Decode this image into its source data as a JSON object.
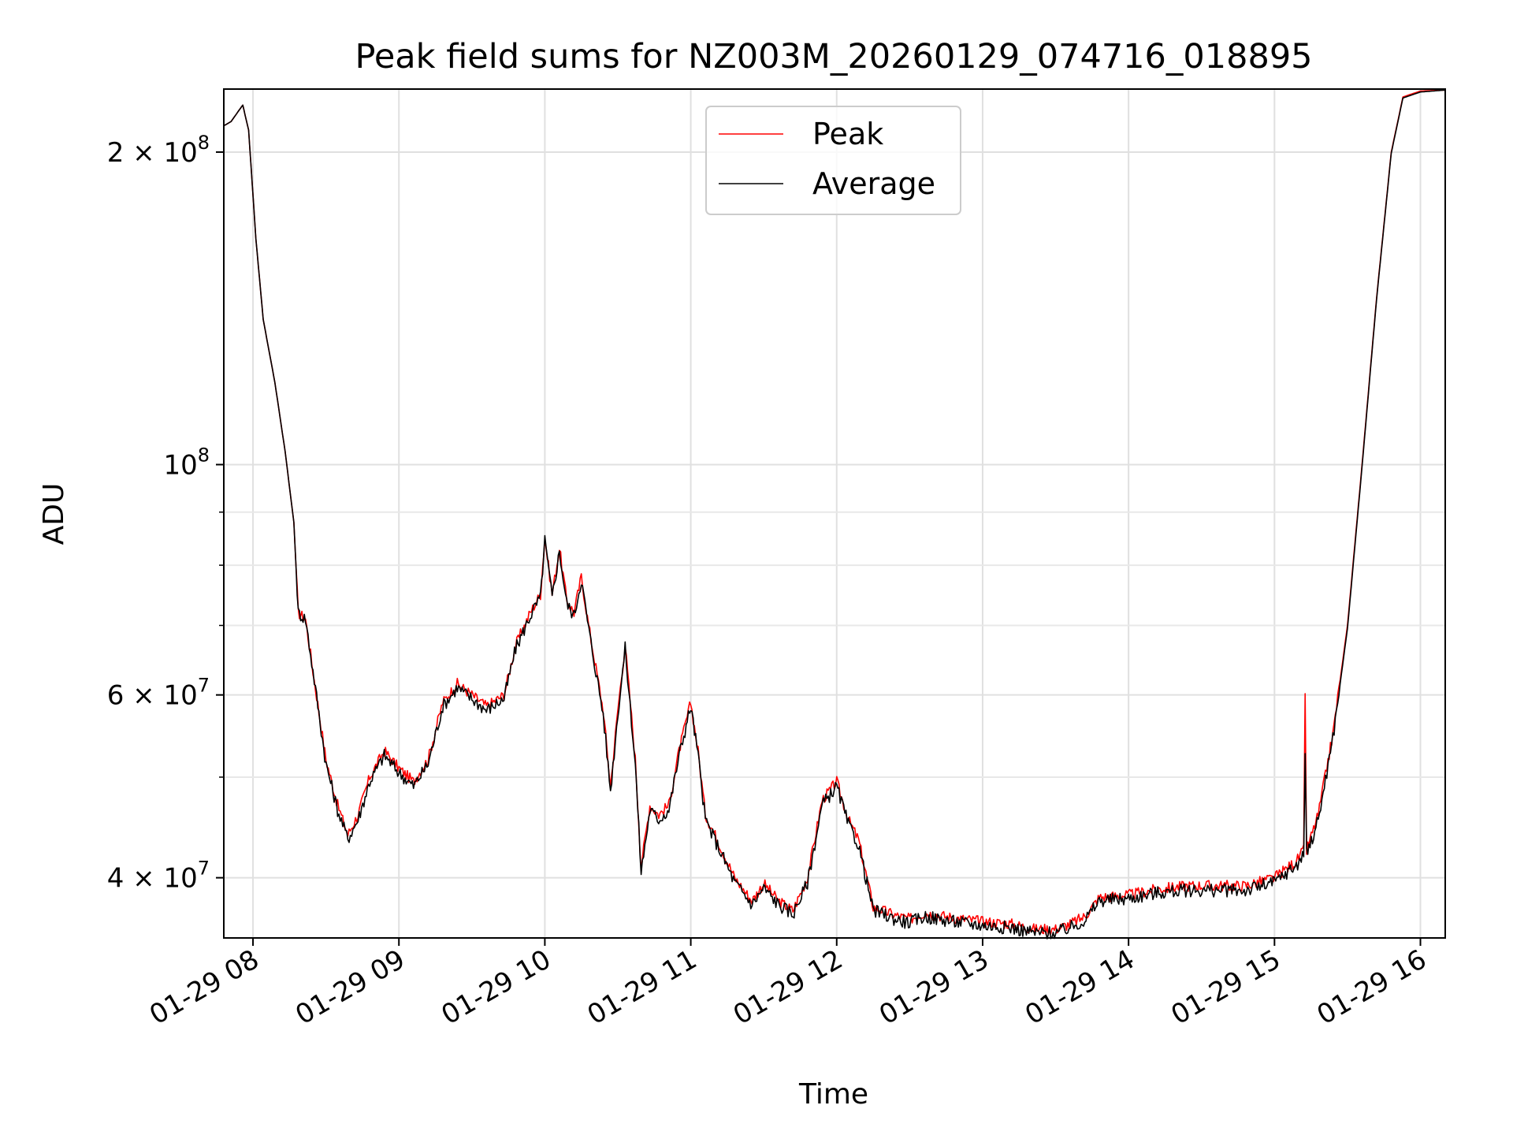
{
  "chart_data": {
    "type": "line",
    "title": "Peak field sums for NZ003M_20260129_074716_018895",
    "xlabel": "Time",
    "ylabel": "ADU",
    "yscale": "log",
    "xlim": [
      7.8,
      16.17
    ],
    "ylim": [
      35000000,
      230000000
    ],
    "grid": true,
    "legend_position": "top-center",
    "x_ticks": [
      {
        "value": 8,
        "label": "01-29 08"
      },
      {
        "value": 9,
        "label": "01-29 09"
      },
      {
        "value": 10,
        "label": "01-29 10"
      },
      {
        "value": 11,
        "label": "01-29 11"
      },
      {
        "value": 12,
        "label": "01-29 12"
      },
      {
        "value": 13,
        "label": "01-29 13"
      },
      {
        "value": 14,
        "label": "01-29 14"
      },
      {
        "value": 15,
        "label": "01-29 15"
      },
      {
        "value": 16,
        "label": "01-29 16"
      }
    ],
    "y_ticks": [
      {
        "value": 40000000,
        "mantissa": "4 × 10",
        "exponent": "7"
      },
      {
        "value": 60000000,
        "mantissa": "6 × 10",
        "exponent": "7"
      },
      {
        "value": 100000000,
        "mantissa": "10",
        "exponent": "8"
      },
      {
        "value": 200000000,
        "mantissa": "2 × 10",
        "exponent": "8"
      }
    ],
    "y_minor_ticks": [
      50000000,
      70000000,
      80000000,
      90000000
    ],
    "series": [
      {
        "name": "Peak",
        "color": "#ff0000",
        "points": [
          [
            7.8,
            212000000
          ],
          [
            7.85,
            214000000
          ],
          [
            7.93,
            222000000
          ],
          [
            7.97,
            210000000
          ],
          [
            8.02,
            165000000
          ],
          [
            8.07,
            138000000
          ],
          [
            8.15,
            120000000
          ],
          [
            8.22,
            103000000
          ],
          [
            8.28,
            88000000
          ],
          [
            8.31,
            72000000
          ],
          [
            8.36,
            71000000
          ],
          [
            8.42,
            62000000
          ],
          [
            8.5,
            52000000
          ],
          [
            8.58,
            47000000
          ],
          [
            8.65,
            44000000
          ],
          [
            8.72,
            46000000
          ],
          [
            8.8,
            50000000
          ],
          [
            8.9,
            53000000
          ],
          [
            9.0,
            51000000
          ],
          [
            9.1,
            49500000
          ],
          [
            9.2,
            52000000
          ],
          [
            9.3,
            59000000
          ],
          [
            9.4,
            61500000
          ],
          [
            9.5,
            60000000
          ],
          [
            9.6,
            58500000
          ],
          [
            9.72,
            60000000
          ],
          [
            9.8,
            67000000
          ],
          [
            9.9,
            72000000
          ],
          [
            9.97,
            75000000
          ],
          [
            10.0,
            85000000
          ],
          [
            10.05,
            75000000
          ],
          [
            10.1,
            83000000
          ],
          [
            10.15,
            74000000
          ],
          [
            10.2,
            72000000
          ],
          [
            10.25,
            78000000
          ],
          [
            10.3,
            70000000
          ],
          [
            10.4,
            58000000
          ],
          [
            10.45,
            49000000
          ],
          [
            10.5,
            58000000
          ],
          [
            10.55,
            67000000
          ],
          [
            10.62,
            52000000
          ],
          [
            10.66,
            41000000
          ],
          [
            10.72,
            47000000
          ],
          [
            10.78,
            46000000
          ],
          [
            10.85,
            47000000
          ],
          [
            10.92,
            53000000
          ],
          [
            11.0,
            59000000
          ],
          [
            11.05,
            53000000
          ],
          [
            11.1,
            46000000
          ],
          [
            11.2,
            43000000
          ],
          [
            11.3,
            40000000
          ],
          [
            11.42,
            38000000
          ],
          [
            11.5,
            39500000
          ],
          [
            11.6,
            38000000
          ],
          [
            11.7,
            37200000
          ],
          [
            11.8,
            40000000
          ],
          [
            11.9,
            47500000
          ],
          [
            12.0,
            49500000
          ],
          [
            12.08,
            45500000
          ],
          [
            12.15,
            43500000
          ],
          [
            12.25,
            37500000
          ],
          [
            12.4,
            36800000
          ],
          [
            12.5,
            36500000
          ],
          [
            12.6,
            37000000
          ],
          [
            12.8,
            36600000
          ],
          [
            13.0,
            36300000
          ],
          [
            13.2,
            36100000
          ],
          [
            13.35,
            35700000
          ],
          [
            13.5,
            35700000
          ],
          [
            13.6,
            36100000
          ],
          [
            13.7,
            36700000
          ],
          [
            13.8,
            38300000
          ],
          [
            14.0,
            38500000
          ],
          [
            14.2,
            39000000
          ],
          [
            14.4,
            39300000
          ],
          [
            14.6,
            39300000
          ],
          [
            14.8,
            39300000
          ],
          [
            15.0,
            40000000
          ],
          [
            15.15,
            41500000
          ],
          [
            15.2,
            42500000
          ],
          [
            15.21,
            60000000
          ],
          [
            15.22,
            42500000
          ],
          [
            15.3,
            46000000
          ],
          [
            15.4,
            55000000
          ],
          [
            15.5,
            70000000
          ],
          [
            15.6,
            100000000
          ],
          [
            15.7,
            145000000
          ],
          [
            15.8,
            200000000
          ],
          [
            15.88,
            226000000
          ],
          [
            16.0,
            229000000
          ],
          [
            16.17,
            229500000
          ]
        ]
      },
      {
        "name": "Average",
        "color": "#000000",
        "points": [
          [
            7.8,
            212000000
          ],
          [
            7.85,
            214000000
          ],
          [
            7.93,
            222000000
          ],
          [
            7.97,
            210000000
          ],
          [
            8.02,
            165000000
          ],
          [
            8.07,
            138000000
          ],
          [
            8.15,
            120000000
          ],
          [
            8.22,
            103000000
          ],
          [
            8.28,
            88000000
          ],
          [
            8.31,
            72000000
          ],
          [
            8.36,
            71000000
          ],
          [
            8.42,
            62000000
          ],
          [
            8.5,
            51500000
          ],
          [
            8.58,
            46500000
          ],
          [
            8.65,
            43600000
          ],
          [
            8.72,
            45500000
          ],
          [
            8.8,
            49500000
          ],
          [
            8.9,
            52500000
          ],
          [
            9.0,
            50500000
          ],
          [
            9.1,
            49000000
          ],
          [
            9.2,
            51500000
          ],
          [
            9.3,
            58500000
          ],
          [
            9.4,
            61000000
          ],
          [
            9.5,
            59500000
          ],
          [
            9.6,
            58000000
          ],
          [
            9.72,
            59500000
          ],
          [
            9.8,
            66500000
          ],
          [
            9.9,
            71500000
          ],
          [
            9.97,
            74500000
          ],
          [
            10.0,
            84500000
          ],
          [
            10.05,
            74500000
          ],
          [
            10.1,
            82500000
          ],
          [
            10.15,
            73500000
          ],
          [
            10.2,
            71500000
          ],
          [
            10.25,
            77500000
          ],
          [
            10.3,
            69500000
          ],
          [
            10.4,
            57500000
          ],
          [
            10.45,
            48500000
          ],
          [
            10.5,
            57500000
          ],
          [
            10.55,
            66500000
          ],
          [
            10.62,
            51500000
          ],
          [
            10.66,
            40500000
          ],
          [
            10.72,
            46500000
          ],
          [
            10.78,
            45500000
          ],
          [
            10.85,
            46500000
          ],
          [
            10.92,
            52500000
          ],
          [
            11.0,
            58500000
          ],
          [
            11.05,
            52500000
          ],
          [
            11.1,
            45500000
          ],
          [
            11.2,
            42500000
          ],
          [
            11.3,
            39600000
          ],
          [
            11.42,
            37700000
          ],
          [
            11.5,
            39100000
          ],
          [
            11.6,
            37700000
          ],
          [
            11.7,
            36900000
          ],
          [
            11.8,
            39600000
          ],
          [
            11.9,
            47000000
          ],
          [
            12.0,
            49000000
          ],
          [
            12.08,
            45000000
          ],
          [
            12.15,
            43000000
          ],
          [
            12.25,
            37200000
          ],
          [
            12.4,
            36500000
          ],
          [
            12.5,
            36200000
          ],
          [
            12.6,
            36700000
          ],
          [
            12.8,
            36300000
          ],
          [
            13.0,
            36000000
          ],
          [
            13.2,
            35800000
          ],
          [
            13.35,
            35400000
          ],
          [
            13.5,
            35400000
          ],
          [
            13.6,
            35800000
          ],
          [
            13.7,
            36400000
          ],
          [
            13.8,
            38000000
          ],
          [
            14.0,
            38200000
          ],
          [
            14.2,
            38700000
          ],
          [
            14.4,
            38900000
          ],
          [
            14.6,
            38900000
          ],
          [
            14.8,
            38900000
          ],
          [
            15.0,
            39600000
          ],
          [
            15.15,
            41100000
          ],
          [
            15.2,
            42100000
          ],
          [
            15.21,
            53000000
          ],
          [
            15.22,
            42100000
          ],
          [
            15.3,
            45500000
          ],
          [
            15.4,
            54500000
          ],
          [
            15.5,
            69500000
          ],
          [
            15.6,
            99500000
          ],
          [
            15.7,
            144500000
          ],
          [
            15.8,
            199500000
          ],
          [
            15.88,
            225500000
          ],
          [
            16.0,
            228500000
          ],
          [
            16.17,
            229500000
          ]
        ]
      }
    ]
  }
}
